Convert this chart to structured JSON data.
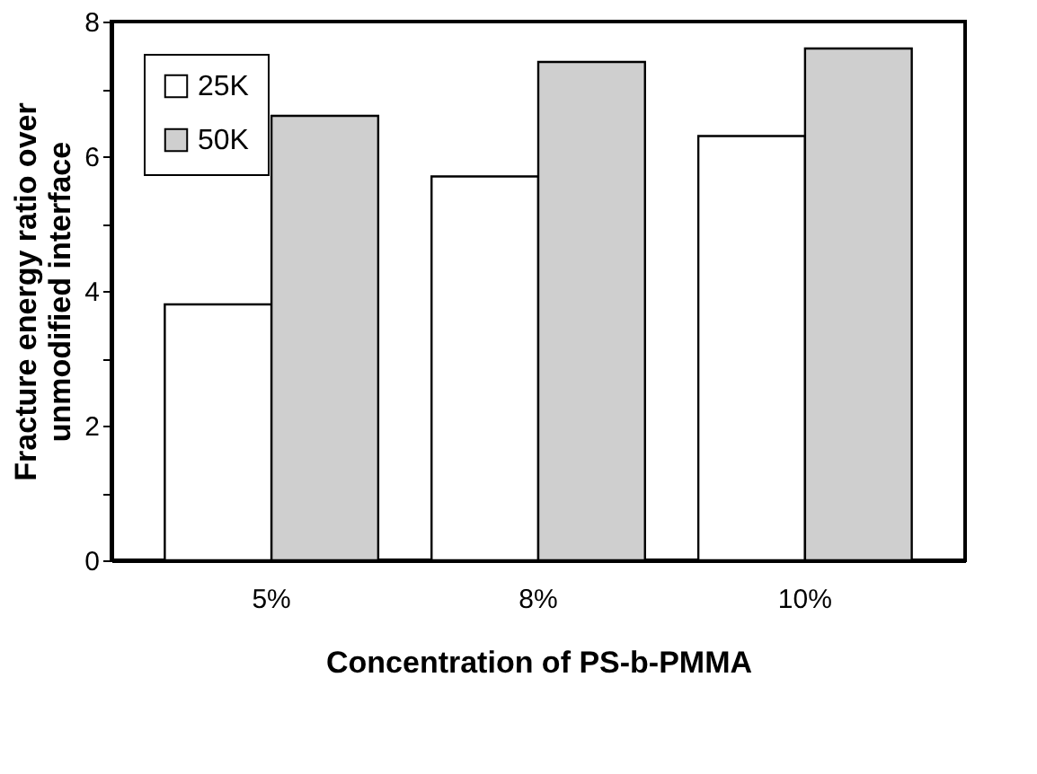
{
  "chart_data": {
    "type": "bar",
    "xlabel": "Concentration of PS-b-PMMA",
    "ylabel": "Fracture energy ratio over\nunmodified interface",
    "categories": [
      "5%",
      "8%",
      "10%"
    ],
    "series": [
      {
        "name": "25K",
        "color": "#ffffff",
        "values": [
          3.8,
          5.7,
          6.3
        ]
      },
      {
        "name": "50K",
        "color": "#cfcfcf",
        "values": [
          6.6,
          7.4,
          7.6
        ]
      }
    ],
    "ylim": [
      0,
      8
    ],
    "yticks": [
      0,
      {
        "value": 1,
        "label": null
      },
      2,
      {
        "value": 3,
        "label": null
      },
      4,
      {
        "value": 5,
        "label": null
      },
      6,
      {
        "value": 7,
        "label": null
      },
      8
    ],
    "grid": false,
    "legend": "top left"
  }
}
